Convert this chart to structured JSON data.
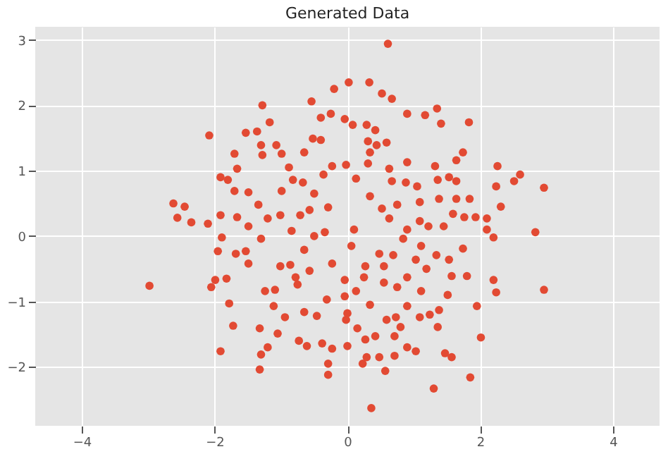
{
  "chart_data": {
    "type": "scatter",
    "title": "Generated Data",
    "color": "#e24a33",
    "marker": "circle",
    "grid": true,
    "xlim": [
      -4.7,
      4.7
    ],
    "ylim": [
      -2.9,
      3.2
    ],
    "xticks": [
      -4,
      -2,
      0,
      2,
      4
    ],
    "yticks": [
      -2,
      -1,
      0,
      1,
      2,
      3
    ],
    "x": [
      0.61,
      -2.98,
      2.96,
      2.96,
      0.36,
      -2.62,
      -2.56,
      -2.45,
      -2.35,
      -2.08,
      -2.1,
      -1.28,
      -1.17,
      -0.54,
      -0.2,
      0.02,
      0.33,
      0.52,
      0.67,
      0.9,
      1.17,
      1.35,
      1.41,
      1.83,
      1.74,
      1.64,
      2.26,
      2.6,
      2.51,
      2.24,
      2.31,
      2.1,
      2.83,
      2.2,
      1.74,
      2.2,
      2.24,
      1.95,
      2.01,
      1.85,
      1.3,
      1.57,
      1.47,
      1.03,
      0.9,
      0.57,
      0.23,
      0.29,
      0,
      0.48,
      0.71,
      1.36,
      1.57,
      1.8,
      1.51,
      1.38,
      1.09,
      1.24,
      0.8,
      0.71,
      0.15,
      -0.02,
      0.59,
      0.9,
      0.42,
      0.27,
      -0.29,
      -0.29,
      -0.23,
      -0.38,
      -0.61,
      -0.73,
      -1.05,
      -1.2,
      -1.3,
      -1.32,
      -1.32,
      -1.72,
      -1.91,
      -1.78,
      -2.05,
      -1.99,
      -1.82,
      -1.49,
      -1.24,
      -1.09,
      -1.11,
      -0.94,
      -1.89,
      -1.95,
      -1.68,
      -1.53,
      -1.3,
      -0.46,
      -0.65,
      -0.31,
      -0.86,
      -0.57,
      -1.01,
      -0.75,
      -1.91,
      -1.8,
      -1.66,
      -1.7,
      -1.53,
      -1.36,
      -1.3,
      -1.28,
      -1.7,
      -1.49,
      -1.66,
      -1.49,
      -1.91,
      -1.34,
      -1.2,
      -1.07,
      -0.99,
      -0.88,
      -0.82,
      -0.65,
      -0.52,
      -0.4,
      -0.4,
      -0.25,
      -0.99,
      -0.67,
      -0.5,
      -0.23,
      -0.36,
      -1.01,
      -0.71,
      -0.57,
      -0.29,
      -0.84,
      -0.34,
      -0.04,
      0.08,
      0.29,
      0.42,
      0.31,
      0.59,
      0.44,
      0.34,
      -0.02,
      0.31,
      0.63,
      0.9,
      1.32,
      1.53,
      1.64,
      0.67,
      0.13,
      0.88,
      1.05,
      1.36,
      1.84,
      1.64,
      1.38,
      1.09,
      0.75,
      0.34,
      0.52,
      1.59,
      1.93,
      1.76,
      1.09,
      1.22,
      1.45,
      2.1,
      0.9,
      0.1,
      0.63,
      0.48,
      0.69,
      1.03,
      1.34,
      1.19,
      0.9,
      0.55,
      0.13,
      -0.04,
      0.34,
      0,
      0.73,
      1.11,
      0.75,
      0.25,
      -0.04,
      0.27,
      0.55,
      0.06,
      0.84,
      1.11,
      1.53,
      -0.65,
      -0.23,
      -0.5,
      -0.78
    ],
    "values": [
      2.94,
      -0.76,
      -0.82,
      0.74,
      -2.63,
      0.5,
      0.28,
      0.45,
      0.21,
      1.54,
      0.19,
      2.0,
      1.74,
      2.06,
      2.25,
      2.35,
      2.35,
      2.18,
      2.1,
      1.87,
      1.85,
      1.95,
      1.72,
      1.74,
      1.28,
      1.16,
      1.07,
      0.94,
      0.84,
      0.76,
      0.45,
      0.27,
      0.06,
      -0.02,
      -0.19,
      -0.67,
      -0.86,
      -1.07,
      -1.55,
      -2.16,
      -2.33,
      -1.85,
      -1.79,
      -1.76,
      -1.7,
      -2.06,
      -1.95,
      -1.85,
      -1.68,
      -1.85,
      -1.83,
      -1.39,
      -0.61,
      -0.61,
      -0.9,
      -1.13,
      -1.24,
      -1.2,
      -1.39,
      -1.53,
      -1.41,
      -1.28,
      -1.28,
      -1.07,
      -1.53,
      -1.58,
      -2.12,
      -1.95,
      -1.72,
      -1.64,
      -1.68,
      -1.6,
      -1.49,
      -1.7,
      -1.81,
      -2.04,
      -1.41,
      -1.37,
      -1.76,
      -1.03,
      -0.78,
      -0.67,
      -0.65,
      -0.42,
      -0.84,
      -0.82,
      -1.07,
      -1.24,
      -0.02,
      -0.23,
      -0.27,
      -0.23,
      -0.04,
      -1.22,
      -1.16,
      -0.97,
      -0.44,
      -0.53,
      -0.46,
      -0.74,
      0.9,
      0.86,
      1.03,
      1.26,
      1.58,
      1.6,
      1.39,
      1.24,
      0.69,
      0.67,
      0.29,
      0.15,
      0.32,
      0.48,
      0.27,
      1.39,
      1.26,
      1.05,
      0.86,
      1.28,
      1.49,
      1.47,
      1.81,
      1.87,
      0.69,
      0.82,
      0.65,
      1.07,
      0.94,
      0.32,
      0.32,
      0.4,
      0.44,
      0.08,
      0.06,
      1.79,
      1.7,
      1.7,
      1.62,
      1.45,
      1.43,
      1.39,
      1.28,
      1.09,
      1.11,
      1.03,
      1.13,
      1.07,
      0.9,
      0.84,
      0.84,
      0.88,
      0.82,
      0.76,
      0.86,
      0.57,
      0.57,
      0.57,
      0.52,
      0.48,
      0.61,
      0.42,
      0.34,
      0.29,
      0.29,
      0.23,
      0.15,
      0.15,
      0.1,
      0.1,
      0.1,
      0.27,
      -0.27,
      -0.29,
      -0.36,
      -0.29,
      -0.5,
      -0.63,
      -0.71,
      -0.84,
      -0.92,
      -1.05,
      -1.18,
      -1.24,
      -0.84,
      -0.78,
      -0.63,
      -0.67,
      -0.46,
      -0.46,
      -0.15,
      -0.04,
      -0.15,
      -0.36,
      -0.21,
      -0.42,
      0.0,
      -0.63
    ]
  }
}
